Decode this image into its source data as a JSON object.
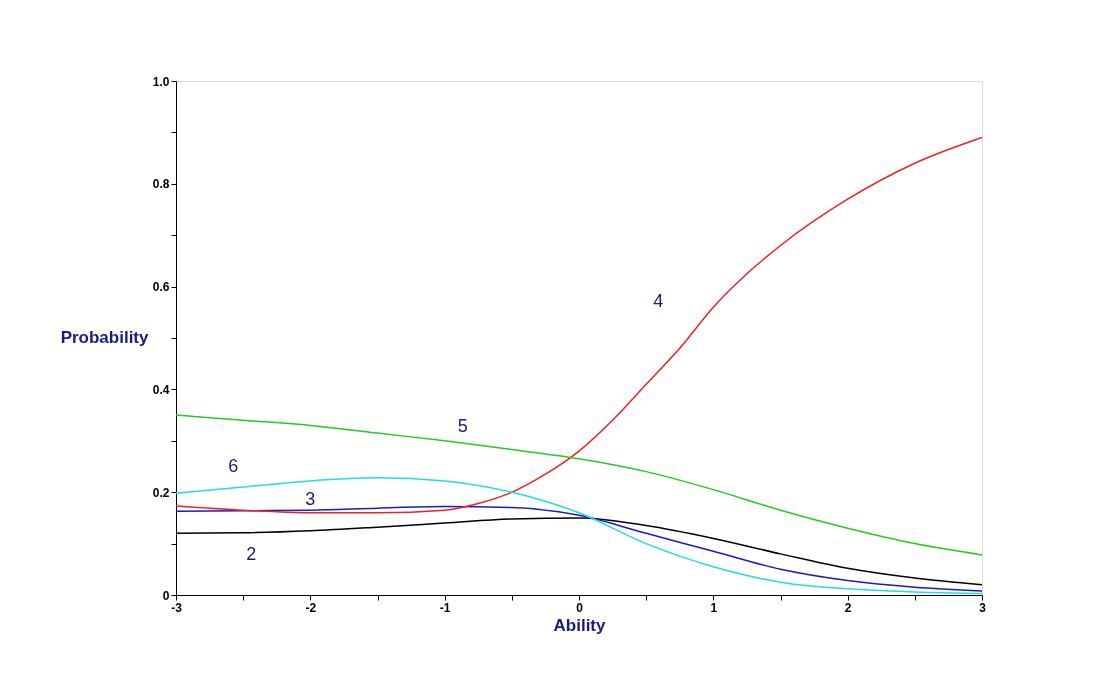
{
  "chart_data": {
    "type": "line",
    "xlabel": "Ability",
    "ylabel": "Probability",
    "xlim": [
      -3,
      3
    ],
    "xticks": [
      -3,
      {
        "value": -2.5,
        "label": null
      },
      -2,
      {
        "value": -1.5,
        "label": null
      },
      -1,
      {
        "value": -0.5,
        "label": null
      },
      0,
      {
        "value": 0.5,
        "label": null
      },
      1,
      {
        "value": 1.5,
        "label": null
      },
      2,
      {
        "value": 2.5,
        "label": null
      },
      3
    ],
    "ylim": [
      0,
      1
    ],
    "yticks": [
      0,
      {
        "value": 0.1,
        "label": null
      },
      {
        "value": 0.2,
        "label": "0.2"
      },
      {
        "value": 0.3,
        "label": null
      },
      {
        "value": 0.4,
        "label": "0.4"
      },
      {
        "value": 0.5,
        "label": null
      },
      {
        "value": 0.6,
        "label": "0.6"
      },
      {
        "value": 0.7,
        "label": null
      },
      {
        "value": 0.8,
        "label": "0.8"
      },
      {
        "value": 0.9,
        "label": null
      },
      {
        "value": 1,
        "label": "1.0"
      }
    ],
    "grid": false,
    "marker": "none",
    "line_style": "solid",
    "series": [
      {
        "name": "2",
        "color": "#000000",
        "x": [
          -3,
          -2.5,
          -2,
          -1.5,
          -1,
          -0.5,
          0,
          0.5,
          1,
          1.5,
          2,
          2.5,
          3
        ],
        "values": [
          0.12,
          0.121,
          0.125,
          0.132,
          0.14,
          0.148,
          0.15,
          0.135,
          0.11,
          0.08,
          0.052,
          0.033,
          0.02
        ]
      },
      {
        "name": "3",
        "color": "#1a1acc",
        "x": [
          -3,
          -2.5,
          -2,
          -1.5,
          -1,
          -0.5,
          0,
          0.5,
          1,
          1.5,
          2,
          2.5,
          3
        ],
        "values": [
          0.163,
          0.164,
          0.165,
          0.169,
          0.172,
          0.17,
          0.155,
          0.12,
          0.085,
          0.05,
          0.028,
          0.015,
          0.008
        ]
      },
      {
        "name": "4",
        "color": "#ee2222",
        "x": [
          -3,
          -2.5,
          -2,
          -1.5,
          -1,
          -0.75,
          -0.5,
          -0.25,
          0,
          0.25,
          0.5,
          0.75,
          1,
          1.25,
          1.5,
          2,
          2.5,
          3
        ],
        "values": [
          0.173,
          0.165,
          0.16,
          0.16,
          0.165,
          0.178,
          0.2,
          0.235,
          0.28,
          0.34,
          0.41,
          0.48,
          0.56,
          0.625,
          0.68,
          0.77,
          0.84,
          0.89
        ]
      },
      {
        "name": "5",
        "color": "#22cc22",
        "x": [
          -3,
          -2.5,
          -2,
          -1.5,
          -1,
          -0.5,
          0,
          0.5,
          1,
          1.5,
          2,
          2.5,
          3
        ],
        "values": [
          0.35,
          0.34,
          0.33,
          0.315,
          0.3,
          0.283,
          0.265,
          0.24,
          0.205,
          0.165,
          0.13,
          0.1,
          0.078
        ]
      },
      {
        "name": "6",
        "color": "#22dddd",
        "x": [
          -3,
          -2.5,
          -2,
          -1.5,
          -1,
          -0.5,
          0,
          0.5,
          1,
          1.5,
          2,
          2.5,
          3
        ],
        "values": [
          0.198,
          0.21,
          0.222,
          0.228,
          0.222,
          0.2,
          0.16,
          0.1,
          0.055,
          0.025,
          0.012,
          0.006,
          0.003
        ]
      }
    ]
  }
}
